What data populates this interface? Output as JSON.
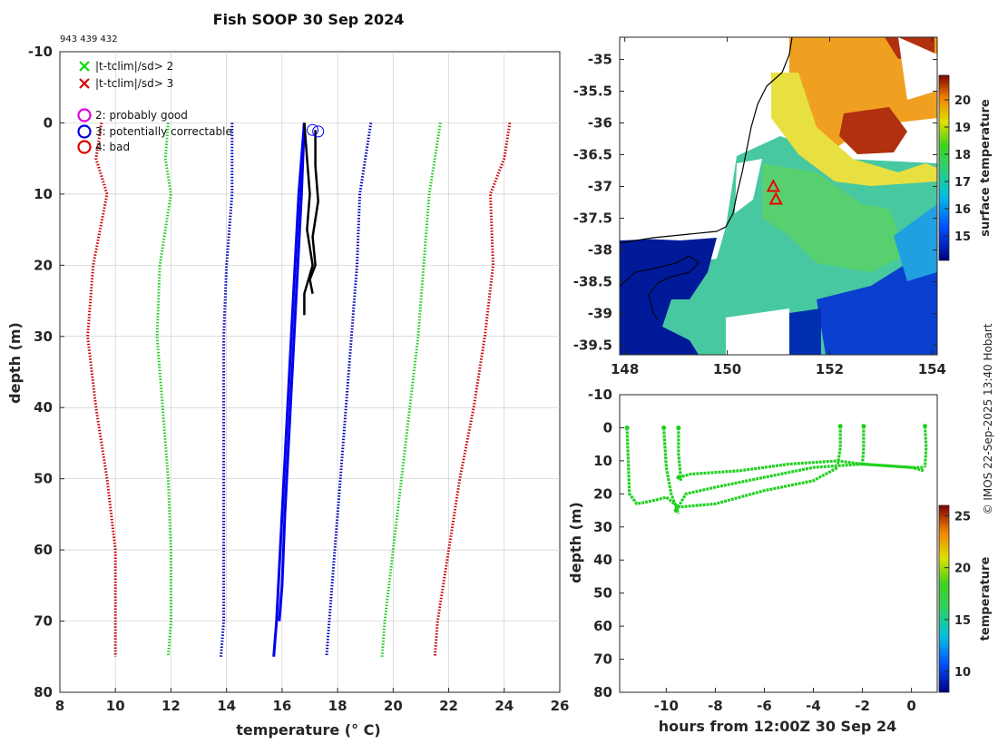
{
  "title": "Fish SOOP 30 Sep 2024",
  "subtitle": "943 439 432",
  "watermark": "© IMOS 22-Sep-2025 13:40 Hobart",
  "chart_data": [
    {
      "type": "line",
      "name": "temperature-profile",
      "xlabel": "temperature (° C)",
      "ylabel": "depth (m)",
      "xlim": [
        8,
        26
      ],
      "ylim": [
        -10,
        80
      ],
      "xticks": [
        8,
        10,
        12,
        14,
        16,
        18,
        20,
        22,
        24,
        26
      ],
      "yticks": [
        -10,
        0,
        10,
        20,
        30,
        40,
        50,
        60,
        70,
        80
      ],
      "grid": true,
      "legend": [
        {
          "label": "|t-tclim|/sd> 2",
          "marker": "x",
          "color": "#00dd00"
        },
        {
          "label": "|t-tclim|/sd> 3",
          "marker": "x",
          "color": "#dd0000"
        },
        {
          "label": "2: probably good",
          "marker": "o",
          "color": "#dd00dd"
        },
        {
          "label": "3: potentially correctable",
          "marker": "o",
          "color": "#0000dd"
        },
        {
          "label": "4: bad",
          "marker": "o",
          "color": "#dd0000"
        }
      ],
      "series": [
        {
          "name": "clim minus 3 sd",
          "style": "dotted",
          "color": "#cc0000",
          "x": [
            9.5,
            9.3,
            9.7,
            9.2,
            9.0,
            9.3,
            9.7,
            10.0,
            10.0,
            10.0
          ],
          "depth": [
            0,
            5,
            10,
            20,
            30,
            40,
            50,
            60,
            70,
            75
          ]
        },
        {
          "name": "clim minus 2 sd",
          "style": "dotted",
          "color": "#22cc22",
          "x": [
            11.9,
            11.8,
            12.0,
            11.6,
            11.5,
            11.7,
            11.9,
            12.0,
            12.0,
            11.9
          ],
          "depth": [
            0,
            5,
            10,
            20,
            30,
            40,
            50,
            60,
            70,
            75
          ]
        },
        {
          "name": "climatology mean",
          "style": "dotted",
          "color": "#0000bb",
          "x": [
            14.2,
            14.2,
            14.2,
            14.0,
            13.9,
            13.9,
            13.9,
            13.9,
            13.9,
            13.8
          ],
          "depth": [
            0,
            5,
            10,
            20,
            30,
            40,
            50,
            60,
            70,
            75
          ]
        },
        {
          "name": "clim plus 1 sd",
          "style": "dotted",
          "color": "#0000bb",
          "x": [
            19.2,
            19.0,
            18.8,
            18.7,
            18.5,
            18.3,
            18.1,
            17.9,
            17.7,
            17.6
          ],
          "depth": [
            0,
            5,
            10,
            20,
            30,
            40,
            50,
            60,
            70,
            75
          ]
        },
        {
          "name": "clim plus 2 sd",
          "style": "dotted",
          "color": "#22cc22",
          "x": [
            21.7,
            21.5,
            21.3,
            21.1,
            20.9,
            20.6,
            20.3,
            20.0,
            19.7,
            19.6
          ],
          "depth": [
            0,
            5,
            10,
            20,
            30,
            40,
            50,
            60,
            70,
            75
          ]
        },
        {
          "name": "clim plus 3 sd",
          "style": "dotted",
          "color": "#cc0000",
          "x": [
            24.2,
            24.0,
            23.5,
            23.6,
            23.3,
            22.9,
            22.4,
            22.0,
            21.6,
            21.5
          ],
          "depth": [
            0,
            5,
            10,
            20,
            30,
            40,
            50,
            60,
            70,
            75
          ]
        },
        {
          "name": "profile 1",
          "style": "solid",
          "color": "#0000ee",
          "x": [
            16.8,
            16.6,
            16.4,
            16.2,
            16.0,
            15.8,
            15.7
          ],
          "depth": [
            0,
            10,
            25,
            40,
            55,
            70,
            75
          ]
        },
        {
          "name": "profile 2",
          "style": "solid",
          "color": "#0000ee",
          "x": [
            16.8,
            16.7,
            16.5,
            16.3,
            16.1,
            16.0,
            15.9
          ],
          "depth": [
            0,
            10,
            25,
            40,
            55,
            65,
            70
          ]
        },
        {
          "name": "profile 3",
          "style": "solid",
          "color": "#000000",
          "x": [
            16.8,
            16.9,
            17.0,
            16.9,
            17.1,
            16.8,
            16.8
          ],
          "depth": [
            0,
            5,
            10,
            15,
            20,
            24,
            27
          ]
        },
        {
          "name": "profile 4",
          "style": "solid",
          "color": "#000000",
          "x": [
            17.2,
            17.2,
            17.3,
            17.1,
            17.2,
            17.0,
            17.1
          ],
          "depth": [
            1,
            6,
            11,
            16,
            20,
            22,
            24
          ]
        }
      ],
      "flag_markers": [
        {
          "x": 17.1,
          "depth": 1,
          "color": "#0000ee"
        },
        {
          "x": 17.3,
          "depth": 1.2,
          "color": "#0000ee"
        }
      ]
    },
    {
      "type": "heatmap",
      "name": "surface-temperature-map",
      "xlim": [
        147.9,
        154.1
      ],
      "ylim": [
        -39.65,
        -34.65
      ],
      "xticks": [
        148,
        150,
        152,
        154
      ],
      "yticks": [
        -35,
        -35.5,
        -36,
        -36.5,
        -37,
        -37.5,
        -38,
        -38.5,
        -39,
        -39.5
      ],
      "colorbar_label": "surface temperature",
      "colorbar_range": [
        14.1,
        20.9
      ],
      "colorbar_ticks": [
        15,
        16,
        17,
        18,
        19,
        20
      ],
      "markers": [
        {
          "lon": 150.9,
          "lat": -37.0,
          "shape": "triangle",
          "color": "#ee0000"
        },
        {
          "lon": 150.95,
          "lat": -37.2,
          "shape": "triangle",
          "color": "#ee0000"
        }
      ]
    },
    {
      "type": "scatter",
      "name": "depth-time-section",
      "xlabel": "hours from 12:00Z 30 Sep 24",
      "ylabel": "depth (m)",
      "xlim": [
        -11.9,
        1.05
      ],
      "ylim": [
        -10,
        80
      ],
      "xticks": [
        -10,
        -8,
        -6,
        -4,
        -2,
        0
      ],
      "yticks": [
        -10,
        0,
        10,
        20,
        30,
        40,
        50,
        60,
        70,
        80
      ],
      "colorbar_label": "temperature",
      "colorbar_range": [
        8,
        26
      ],
      "colorbar_ticks": [
        10,
        15,
        20,
        25
      ],
      "series": [
        {
          "name": "track 1",
          "x": [
            -11.6,
            -11.5,
            -11.2,
            -10.5,
            -10.0,
            -9.5,
            -8.0,
            -6.0,
            -4.0,
            -3.0
          ],
          "depth": [
            0,
            20,
            23,
            22,
            21,
            24,
            23,
            19,
            16,
            12
          ]
        },
        {
          "name": "track 2",
          "x": [
            -9.6,
            -9.2,
            -8.0,
            -6.0,
            -4.0,
            -2.0,
            0.0,
            0.5
          ],
          "depth": [
            25,
            20,
            18,
            15,
            12,
            11,
            12,
            13
          ]
        },
        {
          "name": "track 3",
          "x": [
            -9.5,
            -9.0,
            -7.0,
            -5.0,
            -3.0,
            -2.0,
            0.0,
            0.5
          ],
          "depth": [
            15,
            14,
            13,
            11,
            10,
            11,
            12,
            12
          ]
        },
        {
          "name": "track 4",
          "x": [
            -10.1,
            -10.0,
            -9.8,
            -9.5
          ],
          "depth": [
            0,
            12,
            20,
            26
          ]
        },
        {
          "name": "track 5",
          "x": [
            -9.5,
            -9.5,
            -9.4
          ],
          "depth": [
            0,
            8,
            16
          ]
        },
        {
          "name": "track 6",
          "x": [
            -2.9,
            -2.9,
            -3.0
          ],
          "depth": [
            -0.5,
            6,
            11
          ]
        },
        {
          "name": "track 7",
          "x": [
            -1.95,
            -1.95,
            -2.0
          ],
          "depth": [
            -0.5,
            6,
            11
          ]
        },
        {
          "name": "track 8",
          "x": [
            0.55,
            0.6,
            0.55
          ],
          "depth": [
            -0.5,
            6,
            12
          ]
        }
      ]
    }
  ]
}
